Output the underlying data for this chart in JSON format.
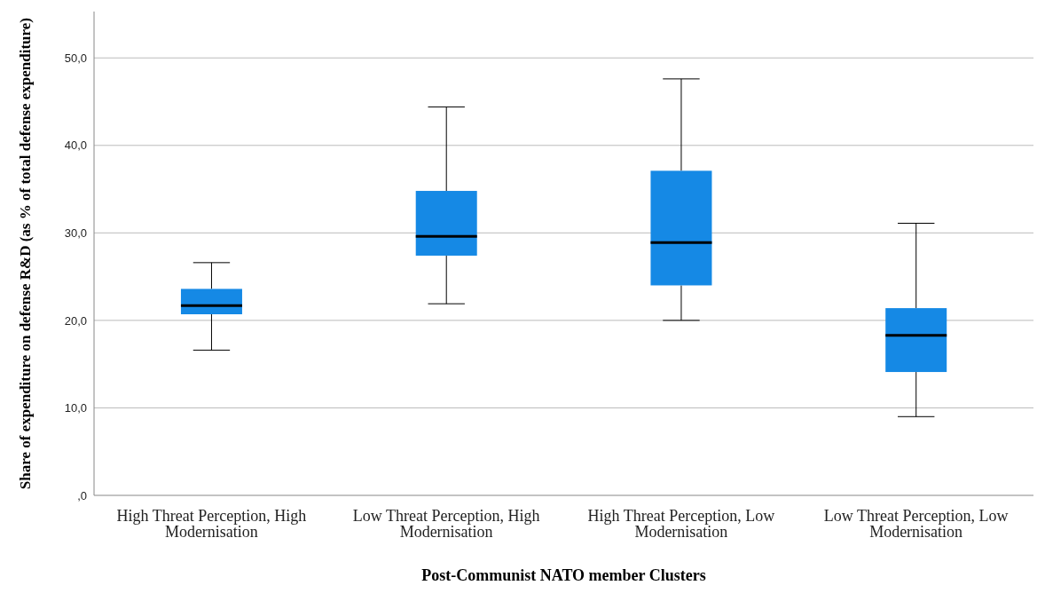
{
  "chart_data": {
    "type": "box",
    "xlabel": "Post-Communist NATO member Clusters",
    "ylabel": "Share of expenditure on defense R&D (as % of total defense expenditure)",
    "categories": [
      "High Threat Perception, High Modernisation",
      "Low Threat Perception, High Modernisation",
      "High Threat Perception, Low Modernisation",
      "Low Threat Perception, Low Modernisation"
    ],
    "color": "#1589e5",
    "boxes": [
      {
        "low": 16.6,
        "q1": 20.7,
        "median": 21.7,
        "q3": 23.6,
        "high": 26.6
      },
      {
        "low": 21.9,
        "q1": 27.4,
        "median": 29.6,
        "q3": 34.8,
        "high": 44.4
      },
      {
        "low": 20.0,
        "q1": 24.0,
        "median": 28.9,
        "q3": 37.1,
        "high": 47.6
      },
      {
        "low": 9.0,
        "q1": 14.1,
        "median": 18.3,
        "q3": 21.4,
        "high": 31.1
      }
    ],
    "ylim": [
      0,
      55.3
    ],
    "yticks": [
      {
        "value": 0,
        "label": ",0"
      },
      {
        "value": 10,
        "label": "10,0"
      },
      {
        "value": 20,
        "label": "20,0"
      },
      {
        "value": 30,
        "label": "30,0"
      },
      {
        "value": 40,
        "label": "40,0"
      },
      {
        "value": 50,
        "label": "50,0"
      }
    ],
    "grid": "y"
  }
}
